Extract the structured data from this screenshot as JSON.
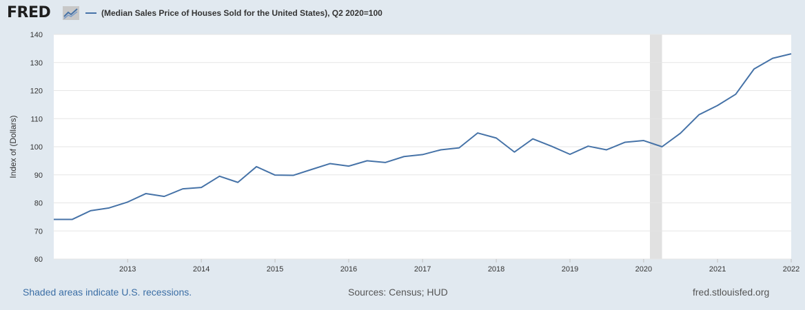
{
  "header": {
    "logo_text": "FRED",
    "logo_icon": "line-chart-icon",
    "legend_label": "(Median Sales Price of Houses Sold for the United States), Q2 2020=100"
  },
  "colors": {
    "background": "#e1e9f0",
    "plot_background": "#ffffff",
    "line": "#4572a7",
    "recession": "#e1e1e1",
    "grid": "#e6e6e6",
    "footer_link": "#3b6ea5"
  },
  "chart_data": {
    "type": "line",
    "title": "",
    "xlabel": "",
    "ylabel": "Index of (Dollars)",
    "ylim": [
      60,
      140
    ],
    "xlim": [
      "2012-01-01",
      "2022-01-01"
    ],
    "yticks": [
      60,
      70,
      80,
      90,
      100,
      110,
      120,
      130,
      140
    ],
    "xticks": [
      "2013",
      "2014",
      "2015",
      "2016",
      "2017",
      "2018",
      "2019",
      "2020",
      "2021",
      "2022"
    ],
    "grid": true,
    "legend_placement": "top-left",
    "recessions": [
      {
        "start": "2020-02-01",
        "end": "2020-04-01"
      }
    ],
    "series": [
      {
        "name": "(Median Sales Price of Houses Sold for the United States), Q2 2020=100",
        "x": [
          "2012-01-01",
          "2012-04-01",
          "2012-07-01",
          "2012-10-01",
          "2013-01-01",
          "2013-04-01",
          "2013-07-01",
          "2013-10-01",
          "2014-01-01",
          "2014-04-01",
          "2014-07-01",
          "2014-10-01",
          "2015-01-01",
          "2015-04-01",
          "2015-07-01",
          "2015-10-01",
          "2016-01-01",
          "2016-04-01",
          "2016-07-01",
          "2016-10-01",
          "2017-01-01",
          "2017-04-01",
          "2017-07-01",
          "2017-10-01",
          "2018-01-01",
          "2018-04-01",
          "2018-07-01",
          "2018-10-01",
          "2019-01-01",
          "2019-04-01",
          "2019-07-01",
          "2019-10-01",
          "2020-01-01",
          "2020-04-01",
          "2020-07-01",
          "2020-10-01",
          "2021-01-01",
          "2021-04-01",
          "2021-07-01",
          "2021-10-01",
          "2022-01-01"
        ],
        "values": [
          74.1,
          74.1,
          77.2,
          78.2,
          80.3,
          83.3,
          82.3,
          85.0,
          85.5,
          89.5,
          87.3,
          92.9,
          89.9,
          89.8,
          91.9,
          94.0,
          93.1,
          95.0,
          94.4,
          96.5,
          97.2,
          98.9,
          99.6,
          104.9,
          103.1,
          98.1,
          102.8,
          100.2,
          97.3,
          100.2,
          98.9,
          101.6,
          102.2,
          100.0,
          104.8,
          111.4,
          114.7,
          118.7,
          127.7,
          131.5,
          133.1
        ]
      }
    ]
  },
  "footer": {
    "recession_note": "Shaded areas indicate U.S. recessions.",
    "sources": "Sources: Census; HUD",
    "site": "fred.stlouisfed.org"
  }
}
